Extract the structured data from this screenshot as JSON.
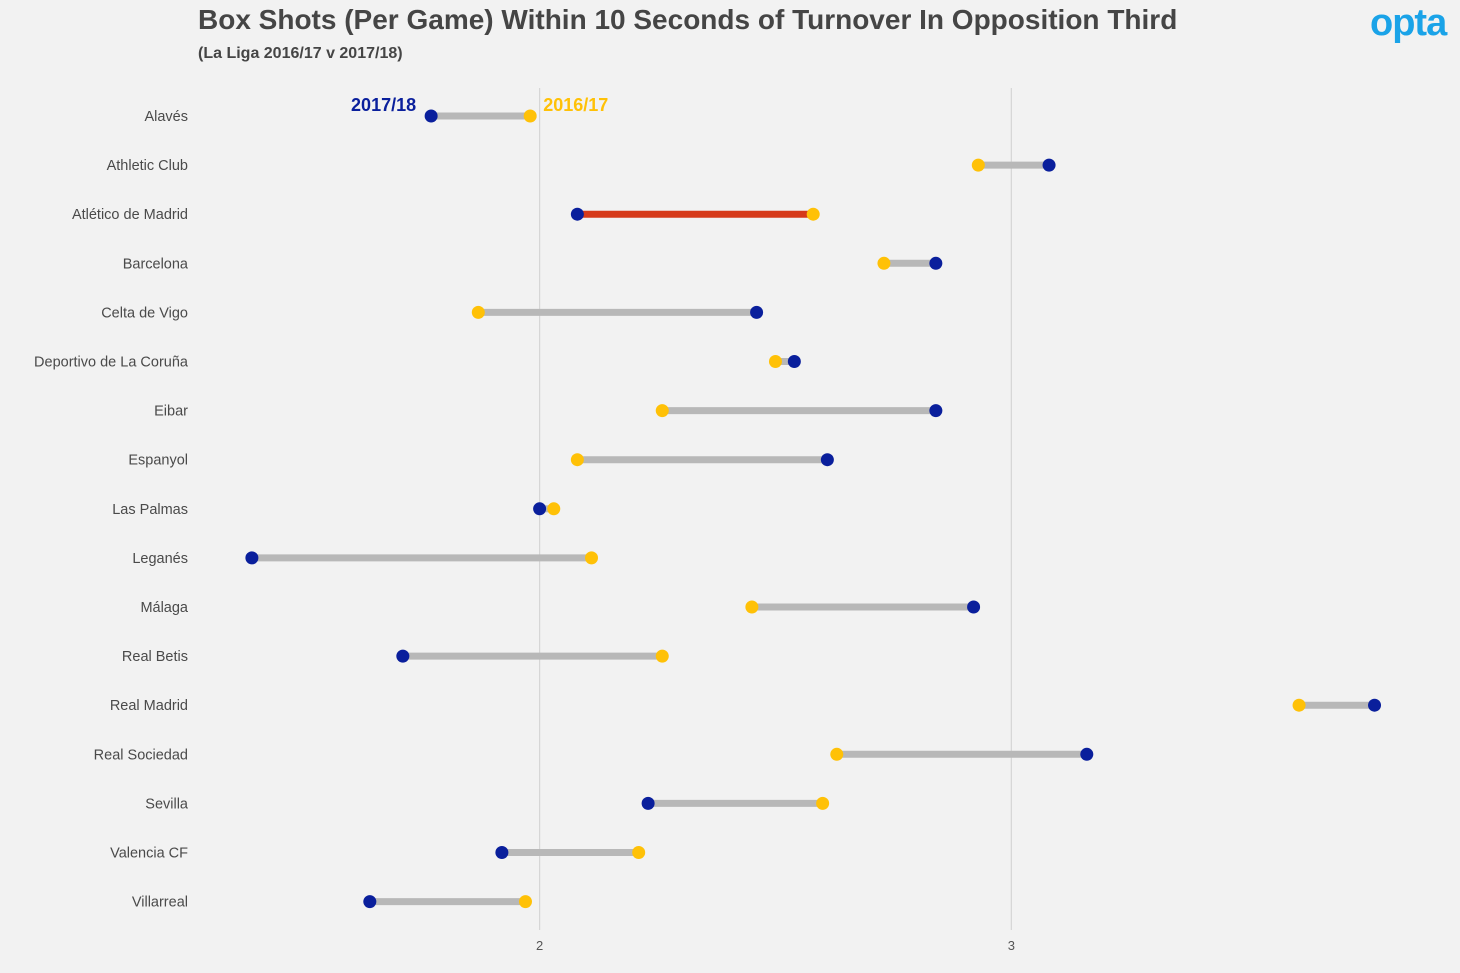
{
  "header": {
    "title": "Box Shots (Per Game) Within 10 Seconds of Turnover In Opposition Third",
    "subtitle": "(La Liga 2016/17 v 2017/18)",
    "logo": "opta"
  },
  "colors": {
    "series_2017_18": "#0a1f9c",
    "series_2016_17": "#ffc107",
    "connector": "#b8b8b8",
    "highlight_connector": "#d63a1a",
    "gridline": "#d5d5d5"
  },
  "chart_data": {
    "type": "dumbbell",
    "title": "Box Shots (Per Game) Within 10 Seconds of Turnover In Opposition Third",
    "subtitle": "(La Liga 2016/17 v 2017/18)",
    "xlabel": "",
    "ylabel": "",
    "xlim": [
      1.28,
      3.93
    ],
    "xticks": [
      2,
      3
    ],
    "xtick_labels": [
      "2",
      "3"
    ],
    "grid": "vertical",
    "legend_placement": "inline-top",
    "categories": [
      "Alavés",
      "Athletic Club",
      "Atlético de Madrid",
      "Barcelona",
      "Celta de Vigo",
      "Deportivo de La Coruña",
      "Eibar",
      "Espanyol",
      "Las Palmas",
      "Leganés",
      "Málaga",
      "Real Betis",
      "Real Madrid",
      "Real Sociedad",
      "Sevilla",
      "Valencia CF",
      "Villarreal"
    ],
    "series": [
      {
        "name": "2017/18",
        "values": [
          1.77,
          3.08,
          2.08,
          2.84,
          2.46,
          2.54,
          2.84,
          2.61,
          2.0,
          1.39,
          2.92,
          1.71,
          3.77,
          3.16,
          2.23,
          1.92,
          1.64
        ]
      },
      {
        "name": "2016/17",
        "values": [
          1.98,
          2.93,
          2.58,
          2.73,
          1.87,
          2.5,
          2.26,
          2.08,
          2.03,
          2.11,
          2.45,
          2.26,
          3.61,
          2.63,
          2.6,
          2.21,
          1.97
        ]
      }
    ],
    "highlight": "Atlético de Madrid"
  }
}
